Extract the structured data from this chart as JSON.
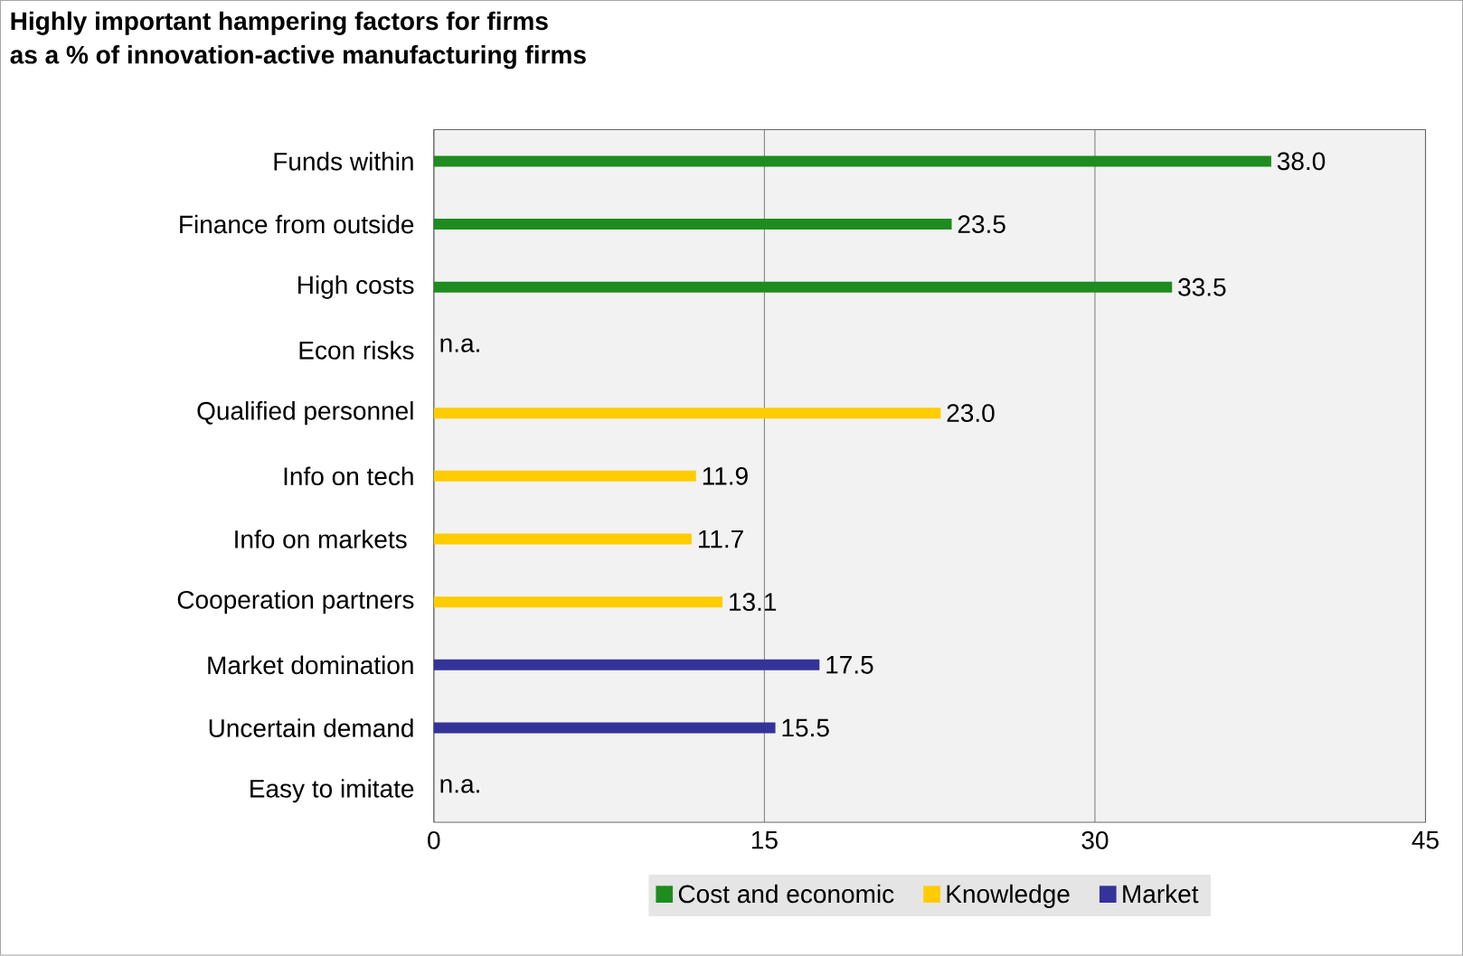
{
  "chart_data": {
    "type": "bar",
    "orientation": "horizontal",
    "title": "Highly important hampering factors for firms",
    "subtitle": "as a % of innovation-active manufacturing firms",
    "categories": [
      "Funds within",
      "Finance from outside",
      "High costs",
      "Econ risks",
      "Qualified personnel",
      "Info on tech",
      "Info on markets ",
      "Cooperation partners",
      "Market domination",
      "Uncertain demand",
      "Easy to imitate"
    ],
    "series": [
      {
        "name": "Cost and economic",
        "color": "#1e8c1e",
        "values": [
          38.0,
          23.5,
          33.5,
          null,
          null,
          null,
          null,
          null,
          null,
          null,
          null
        ],
        "value_labels": [
          "38.0",
          "23.5",
          "33.5",
          null,
          null,
          null,
          null,
          null,
          null,
          null,
          null
        ]
      },
      {
        "name": "Knowledge",
        "color": "#ffcc00",
        "values": [
          null,
          null,
          null,
          null,
          23.0,
          11.9,
          11.7,
          13.1,
          null,
          null,
          null
        ],
        "value_labels": [
          null,
          null,
          null,
          null,
          "23.0",
          "11.9",
          "11.7",
          "13.1",
          null,
          null,
          null
        ]
      },
      {
        "name": "Market",
        "color": "#333399",
        "values": [
          null,
          null,
          null,
          null,
          null,
          null,
          null,
          null,
          17.5,
          15.5,
          null
        ],
        "value_labels": [
          null,
          null,
          null,
          null,
          null,
          null,
          null,
          null,
          "17.5",
          "15.5",
          null
        ]
      }
    ],
    "annotations": [
      "n.a.",
      "n.a."
    ],
    "xlim": [
      0,
      45
    ],
    "xticks": [
      0,
      15,
      30,
      45
    ],
    "grid": "x",
    "legend": "bottom"
  }
}
